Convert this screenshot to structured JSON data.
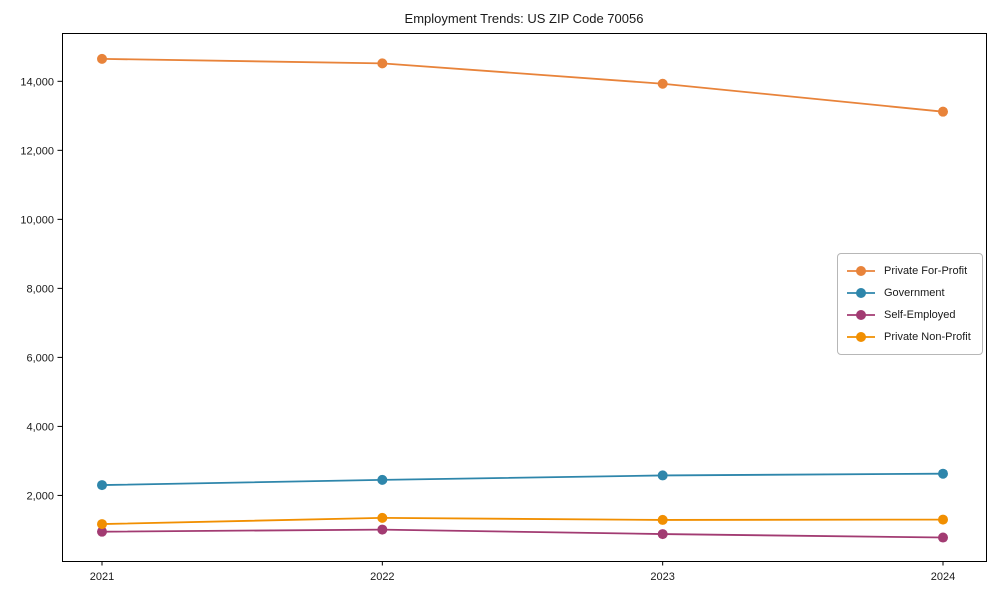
{
  "chart_data": {
    "type": "line",
    "title": "Employment Trends: US ZIP Code 70056",
    "x_labels": [
      "2021",
      "2022",
      "2023",
      "2024"
    ],
    "series": [
      {
        "name": "Private For-Profit",
        "color": "#E8833A",
        "values": [
          14650,
          14520,
          13930,
          13120
        ]
      },
      {
        "name": "Government",
        "color": "#2E86AB",
        "values": [
          2300,
          2450,
          2580,
          2630
        ]
      },
      {
        "name": "Self-Employed",
        "color": "#A23B72",
        "values": [
          950,
          1010,
          880,
          780
        ]
      },
      {
        "name": "Private Non-Profit",
        "color": "#F18F01",
        "values": [
          1170,
          1350,
          1290,
          1300
        ]
      }
    ],
    "ylim": [
      100,
      15400
    ],
    "yticks": [
      2000,
      4000,
      6000,
      8000,
      10000,
      12000,
      14000
    ],
    "ytick_labels": [
      "2,000",
      "4,000",
      "6,000",
      "8,000",
      "10,000",
      "12,000",
      "14,000"
    ],
    "grid": false,
    "legend_position": "center right",
    "marker": "circle",
    "axis_color": "#000000",
    "text_color": "#1a1a1a",
    "background": "#ffffff"
  }
}
